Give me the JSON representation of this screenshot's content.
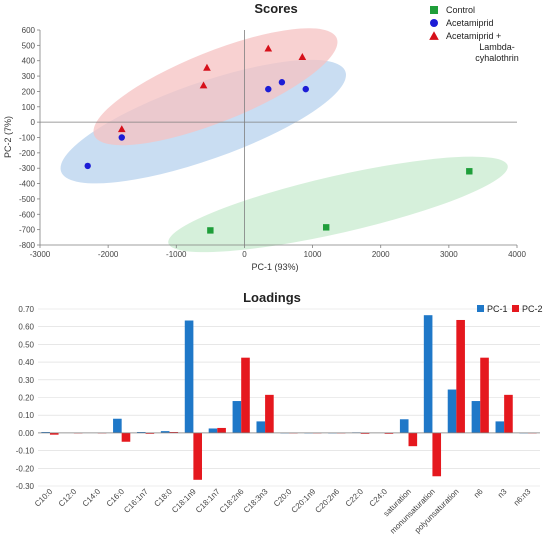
{
  "chart_data": [
    {
      "type": "scatter",
      "title": "Scores",
      "xlabel": "PC-1 (93%)",
      "ylabel": "PC-2 (7%)",
      "xlim": [
        -3000,
        4000
      ],
      "ylim": [
        -800,
        600
      ],
      "xticks": [
        "-3000",
        "-2000",
        "-1000",
        "0",
        "1000",
        "2000",
        "3000",
        "4000"
      ],
      "yticks": [
        "600",
        "500",
        "400",
        "300",
        "200",
        "100",
        "0",
        "-100",
        "-200",
        "-300",
        "-400",
        "-500",
        "-600",
        "-700",
        "-800"
      ],
      "grid": false,
      "legend_position": "top-right",
      "series": [
        {
          "name": "Control",
          "marker": "square",
          "color": "#1f9e3a",
          "ellipse_color": "#c8ebcf",
          "points": [
            [
              -500,
              -705
            ],
            [
              1200,
              -685
            ],
            [
              3300,
              -320
            ]
          ]
        },
        {
          "name": "Acetamiprid",
          "marker": "circle",
          "color": "#1c1cd6",
          "ellipse_color": "#b7d2ee",
          "points": [
            [
              -2300,
              -285
            ],
            [
              -1800,
              -100
            ],
            [
              350,
              215
            ],
            [
              550,
              260
            ],
            [
              900,
              215
            ]
          ]
        },
        {
          "name": "Acetamiprid + Lambda-cyhalothrin",
          "legend_lines": [
            "Acetamiprid +",
            "Lambda-",
            "cyhalothrin"
          ],
          "marker": "triangle",
          "color": "#d6101a",
          "ellipse_color": "#f6c2c2",
          "points": [
            [
              -1800,
              -45
            ],
            [
              -600,
              240
            ],
            [
              -550,
              355
            ],
            [
              350,
              480
            ],
            [
              850,
              425
            ]
          ]
        }
      ]
    },
    {
      "type": "bar",
      "title": "Loadings",
      "ylim": [
        -0.3,
        0.7
      ],
      "yticks": [
        "0.70",
        "0.60",
        "0.50",
        "0.40",
        "0.30",
        "0.20",
        "0.10",
        "0.00",
        "-0.10",
        "-0.20",
        "-0.30"
      ],
      "grid": true,
      "legend_position": "top-right",
      "categories": [
        "C10:0",
        "C12:0",
        "C14:0",
        "C16:0",
        "C16:1n7",
        "C18:0",
        "C18:1n9",
        "C18:1n7",
        "C18:2n6",
        "C18:3n3",
        "C20:0",
        "C20:1n9",
        "C20:2n6",
        "C22:0",
        "C24:0",
        "saturation",
        "monunsaturation",
        "polyunsaturation",
        "n6",
        "n3",
        "n6:n3"
      ],
      "series": [
        {
          "name": "PC-1",
          "color": "#1f78c8",
          "values": [
            0.005,
            0.002,
            0.002,
            0.08,
            0.005,
            0.01,
            0.635,
            0.025,
            0.18,
            0.065,
            0.0,
            0.0,
            0.0,
            0.003,
            0.002,
            0.077,
            0.665,
            0.245,
            0.18,
            0.065,
            0.0
          ]
        },
        {
          "name": "PC-2",
          "color": "#e5181e",
          "values": [
            -0.01,
            0.0,
            0.0,
            -0.05,
            -0.005,
            0.005,
            -0.265,
            0.028,
            0.425,
            0.215,
            0.0,
            0.0,
            0.0,
            -0.005,
            -0.005,
            -0.075,
            -0.245,
            0.638,
            0.425,
            0.215,
            0.0
          ]
        }
      ]
    }
  ]
}
